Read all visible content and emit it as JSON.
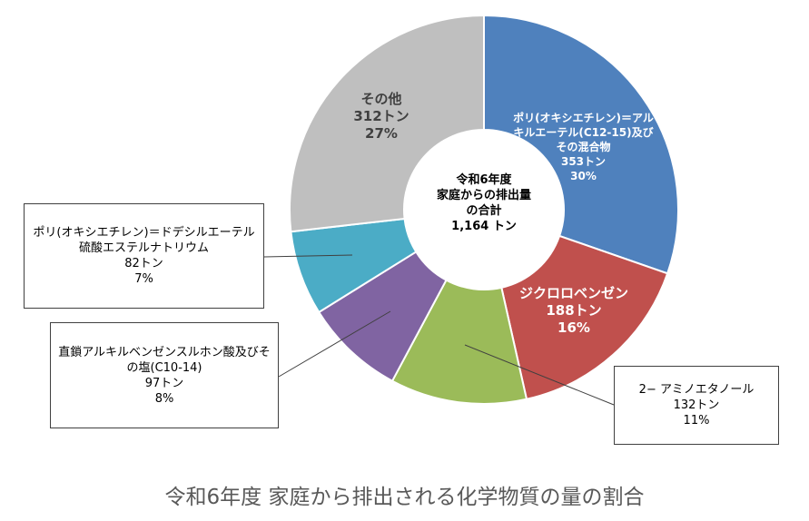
{
  "chart_data": {
    "type": "donut",
    "title": "令和6年度 家庭から排出される化学物質の量の割合",
    "categories": [
      "ポリ(オキシエチレン)＝アルキルエーテル(C12-15)及びその混合物",
      "ジクロロベンゼン",
      "2− アミノエタノール",
      "直鎖アルキルベンゼンスルホン酸及びその塩(C10-14)",
      "ポリ(オキシエチレン)＝ドデシルエーテル硫酸エステルナトリウム",
      "その他"
    ],
    "values": [
      353,
      188,
      132,
      97,
      82,
      312
    ],
    "value_labels": [
      "353トン",
      "188トン",
      "132トン",
      "97トン",
      "82トン",
      "312トン"
    ],
    "percentages": [
      30,
      16,
      11,
      8,
      7,
      27
    ],
    "percentage_labels": [
      "30%",
      "16%",
      "11%",
      "8%",
      "7%",
      "27%"
    ],
    "colors": [
      "#4f81bd",
      "#c0504d",
      "#9bbb59",
      "#8064a2",
      "#4bacc6",
      "#bfbfbf"
    ],
    "center_text": [
      "令和6年度",
      "家庭からの排出量",
      "の合計"
    ],
    "total": 1164,
    "total_label": "1,164 トン"
  }
}
